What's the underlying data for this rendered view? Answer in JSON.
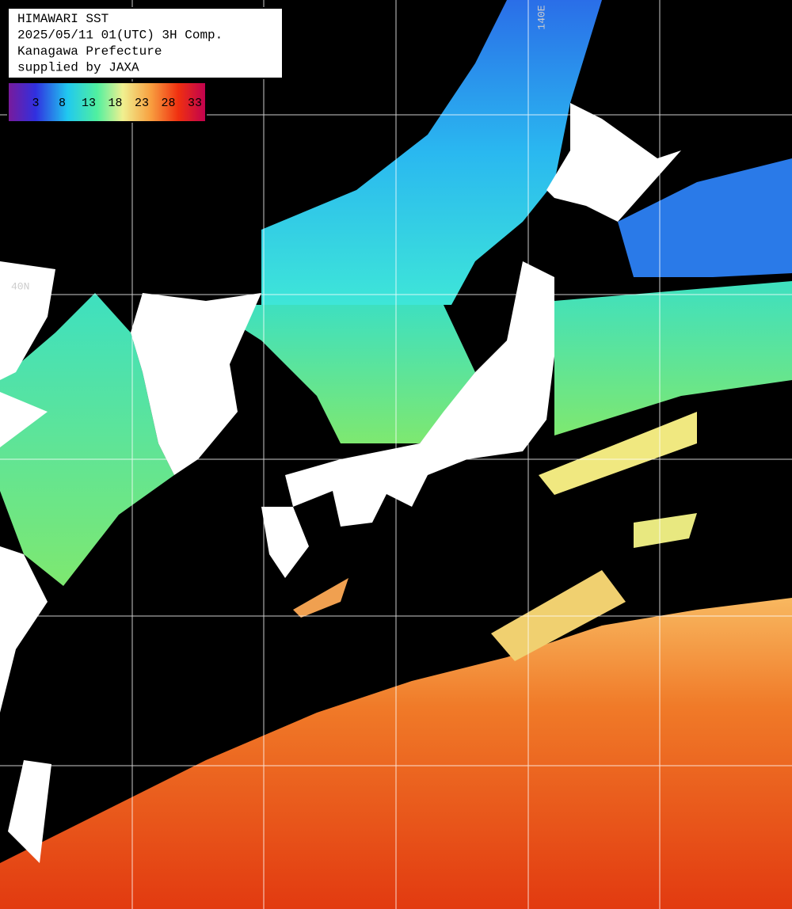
{
  "header": {
    "lines": [
      "HIMAWARI SST",
      "2025/05/11 01(UTC) 3H Comp.",
      "Kanagawa Prefecture",
      "supplied by JAXA"
    ]
  },
  "colorbar": {
    "ticks": [
      3,
      8,
      13,
      18,
      23,
      28,
      33
    ]
  },
  "grid_labels": {
    "longitude": "140E",
    "latitude": "40N"
  }
}
